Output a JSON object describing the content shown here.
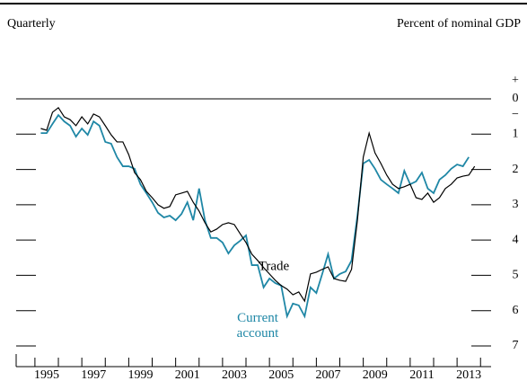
{
  "chart_data": {
    "type": "line",
    "subtitle_left": "Quarterly",
    "y_axis_label": "Percent of nominal GDP",
    "y_sign_labels": [
      "+",
      "−"
    ],
    "invert_y": true,
    "x": [
      1995.25,
      1995.5,
      1995.75,
      1996,
      1996.25,
      1996.5,
      1996.75,
      1997,
      1997.25,
      1997.5,
      1997.75,
      1998,
      1998.25,
      1998.5,
      1998.75,
      1999,
      1999.25,
      1999.5,
      1999.75,
      2000,
      2000.25,
      2000.5,
      2000.75,
      2001,
      2001.25,
      2001.5,
      2001.75,
      2002,
      2002.25,
      2002.5,
      2002.75,
      2003,
      2003.25,
      2003.5,
      2003.75,
      2004,
      2004.25,
      2004.5,
      2004.75,
      2005,
      2005.25,
      2005.5,
      2005.75,
      2006,
      2006.25,
      2006.5,
      2006.75,
      2007,
      2007.25,
      2007.5,
      2007.75,
      2008,
      2008.25,
      2008.5,
      2008.75,
      2009,
      2009.25,
      2009.5,
      2009.75,
      2010,
      2010.25,
      2010.5,
      2010.75,
      2011,
      2011.25,
      2011.5,
      2011.75,
      2012,
      2012.25,
      2012.5,
      2012.75,
      2013,
      2013.25,
      2013.5,
      2013.75
    ],
    "series": [
      {
        "name": "Trade",
        "color": "#000000",
        "values": [
          0.84,
          0.89,
          0.38,
          0.25,
          0.51,
          0.59,
          0.76,
          0.51,
          0.71,
          0.43,
          0.51,
          0.76,
          1.02,
          1.22,
          1.22,
          1.58,
          2.09,
          2.29,
          2.62,
          2.8,
          3.0,
          3.1,
          3.05,
          2.72,
          2.67,
          2.62,
          2.93,
          3.18,
          3.51,
          3.77,
          3.69,
          3.56,
          3.51,
          3.56,
          3.82,
          4.07,
          4.4,
          4.58,
          4.78,
          4.96,
          5.14,
          5.29,
          5.39,
          5.55,
          5.47,
          5.73,
          4.96,
          4.91,
          4.83,
          4.76,
          5.09,
          5.14,
          5.17,
          4.83,
          3.44,
          1.65,
          0.97,
          1.53,
          1.83,
          2.16,
          2.42,
          2.54,
          2.49,
          2.42,
          2.8,
          2.85,
          2.67,
          2.93,
          2.8,
          2.54,
          2.42,
          2.24,
          2.19,
          2.16,
          1.91
        ]
      },
      {
        "name": "Current account",
        "color": "#1f87a6",
        "values": [
          0.97,
          0.97,
          0.71,
          0.46,
          0.64,
          0.76,
          1.07,
          0.84,
          1.02,
          0.64,
          0.76,
          1.22,
          1.27,
          1.65,
          1.91,
          1.91,
          1.98,
          2.42,
          2.67,
          2.93,
          3.23,
          3.36,
          3.31,
          3.44,
          3.26,
          2.93,
          3.44,
          2.54,
          3.44,
          3.94,
          3.94,
          4.07,
          4.38,
          4.15,
          4.02,
          3.87,
          4.71,
          4.71,
          5.34,
          5.09,
          5.22,
          5.29,
          6.16,
          5.8,
          5.85,
          6.16,
          5.34,
          5.5,
          4.96,
          4.4,
          5.09,
          4.96,
          4.89,
          4.58,
          3.31,
          1.83,
          1.73,
          1.98,
          2.29,
          2.42,
          2.54,
          2.67,
          2.04,
          2.42,
          2.34,
          2.09,
          2.54,
          2.67,
          2.29,
          2.16,
          1.98,
          1.86,
          1.91,
          1.65,
          null
        ]
      }
    ],
    "xlim": [
      1994.2,
      2014.45
    ],
    "xticks": [
      {
        "value": 1995.5,
        "label": "1995"
      },
      {
        "value": 1997.5,
        "label": "1997"
      },
      {
        "value": 1999.5,
        "label": "1999"
      },
      {
        "value": 2001.5,
        "label": "2001"
      },
      {
        "value": 2003.5,
        "label": "2003"
      },
      {
        "value": 2005.5,
        "label": "2005"
      },
      {
        "value": 2007.5,
        "label": "2007"
      },
      {
        "value": 2009.5,
        "label": "2009"
      },
      {
        "value": 2011.5,
        "label": "2011"
      },
      {
        "value": 2013.5,
        "label": "2013"
      }
    ],
    "xminor": [
      1995,
      1996,
      1997,
      1998,
      1999,
      2000,
      2001,
      2002,
      2003,
      2004,
      2005,
      2006,
      2007,
      2008,
      2009,
      2010,
      2011,
      2012,
      2013,
      2014
    ],
    "ylim": [
      0,
      7
    ],
    "yticks": [
      0,
      1,
      2,
      3,
      4,
      5,
      6,
      7
    ]
  }
}
